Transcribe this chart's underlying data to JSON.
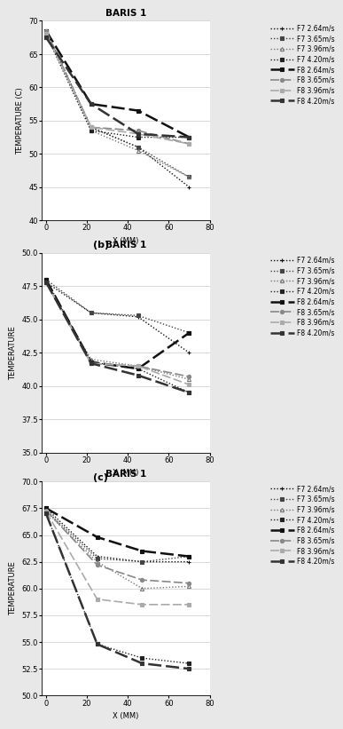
{
  "charts": [
    {
      "title": "BARIS 1",
      "xlabel": "X (MM)",
      "ylabel": "TEMPERATURE (C)",
      "label": "(b)",
      "ylim": [
        40.0,
        70.0
      ],
      "yticks": [
        40.0,
        45.0,
        50.0,
        55.0,
        60.0,
        65.0,
        70.0
      ],
      "xlim": [
        -2,
        80
      ],
      "xticks": [
        0,
        20,
        40,
        60,
        80
      ],
      "series": [
        {
          "label": "F7 2.64m/s",
          "x": [
            0,
            22,
            45,
            70
          ],
          "y": [
            68.5,
            54.0,
            51.0,
            45.0
          ],
          "style": "dotted",
          "marker": "+",
          "color": "#111111"
        },
        {
          "label": "F7 3.65m/s",
          "x": [
            0,
            22,
            45,
            70
          ],
          "y": [
            68.5,
            54.0,
            51.0,
            46.5
          ],
          "style": "dotted",
          "marker": "s",
          "color": "#444444"
        },
        {
          "label": "F7 3.96m/s",
          "x": [
            0,
            22,
            45,
            70
          ],
          "y": [
            68.0,
            53.5,
            50.5,
            46.5
          ],
          "style": "dotted",
          "marker": "^",
          "color": "#777777"
        },
        {
          "label": "F7 4.20m/s",
          "x": [
            0,
            22,
            45,
            70
          ],
          "y": [
            68.0,
            53.5,
            52.5,
            52.5
          ],
          "style": "dotted",
          "marker": "s",
          "color": "#222222"
        },
        {
          "label": "F8 2.64m/s",
          "x": [
            0,
            22,
            45,
            70
          ],
          "y": [
            68.5,
            57.5,
            56.5,
            52.5
          ],
          "style": "dashed_bold",
          "marker": "s",
          "color": "#111111"
        },
        {
          "label": "F8 3.65m/s",
          "x": [
            0,
            22,
            45,
            70
          ],
          "y": [
            68.5,
            54.0,
            53.5,
            51.5
          ],
          "style": "dashed_med",
          "marker": "o",
          "color": "#888888"
        },
        {
          "label": "F8 3.96m/s",
          "x": [
            0,
            22,
            45,
            70
          ],
          "y": [
            68.0,
            54.0,
            53.0,
            51.5
          ],
          "style": "dashed_med",
          "marker": "s",
          "color": "#aaaaaa"
        },
        {
          "label": "F8 4.20m/s",
          "x": [
            0,
            22,
            45,
            70
          ],
          "y": [
            67.5,
            57.5,
            53.0,
            52.5
          ],
          "style": "dashed_bold",
          "marker": "s",
          "color": "#333333"
        }
      ]
    },
    {
      "title": "BARIS 1",
      "xlabel": "X (MM)",
      "ylabel": "TEMPERATURE",
      "label": "(c)",
      "ylim": [
        35.0,
        50.0
      ],
      "yticks": [
        35.0,
        37.5,
        40.0,
        42.5,
        45.0,
        47.5,
        50.0
      ],
      "xlim": [
        -2,
        80
      ],
      "xticks": [
        0,
        20,
        40,
        60,
        80
      ],
      "series": [
        {
          "label": "F7 2.64m/s",
          "x": [
            0,
            22,
            45,
            70
          ],
          "y": [
            47.8,
            45.5,
            45.2,
            42.5
          ],
          "style": "dotted",
          "marker": "+",
          "color": "#111111"
        },
        {
          "label": "F7 3.65m/s",
          "x": [
            0,
            22,
            45,
            70
          ],
          "y": [
            48.0,
            45.5,
            45.3,
            44.0
          ],
          "style": "dotted",
          "marker": "s",
          "color": "#444444"
        },
        {
          "label": "F7 3.96m/s",
          "x": [
            0,
            22,
            45,
            70
          ],
          "y": [
            47.8,
            42.0,
            41.5,
            40.5
          ],
          "style": "dotted",
          "marker": "^",
          "color": "#777777"
        },
        {
          "label": "F7 4.20m/s",
          "x": [
            0,
            22,
            45,
            70
          ],
          "y": [
            48.0,
            41.8,
            41.3,
            39.5
          ],
          "style": "dotted",
          "marker": "s",
          "color": "#222222"
        },
        {
          "label": "F8 2.64m/s",
          "x": [
            0,
            22,
            45,
            70
          ],
          "y": [
            48.0,
            41.8,
            41.3,
            44.0
          ],
          "style": "dashed_bold",
          "marker": "s",
          "color": "#111111"
        },
        {
          "label": "F8 3.65m/s",
          "x": [
            0,
            22,
            45,
            70
          ],
          "y": [
            47.8,
            41.7,
            41.5,
            40.7
          ],
          "style": "dashed_med",
          "marker": "o",
          "color": "#888888"
        },
        {
          "label": "F8 3.96m/s",
          "x": [
            0,
            22,
            45,
            70
          ],
          "y": [
            47.8,
            41.7,
            41.5,
            40.1
          ],
          "style": "dashed_med",
          "marker": "s",
          "color": "#aaaaaa"
        },
        {
          "label": "F8 4.20m/s",
          "x": [
            0,
            22,
            45,
            70
          ],
          "y": [
            47.8,
            41.7,
            40.8,
            39.5
          ],
          "style": "dashed_bold",
          "marker": "s",
          "color": "#333333"
        }
      ]
    },
    {
      "title": "BARIS 1",
      "xlabel": "X (MM)",
      "ylabel": "TEMPERATURE",
      "label": "",
      "ylim": [
        50.0,
        70.0
      ],
      "yticks": [
        50.0,
        52.5,
        55.0,
        57.5,
        60.0,
        62.5,
        65.0,
        67.5,
        70.0
      ],
      "xlim": [
        -2,
        80
      ],
      "xticks": [
        0,
        20,
        40,
        60,
        80
      ],
      "series": [
        {
          "label": "F7 2.64m/s",
          "x": [
            0,
            25,
            47,
            70
          ],
          "y": [
            67.5,
            63.0,
            62.5,
            62.5
          ],
          "style": "dotted",
          "marker": "+",
          "color": "#111111"
        },
        {
          "label": "F7 3.65m/s",
          "x": [
            0,
            25,
            47,
            70
          ],
          "y": [
            67.3,
            62.8,
            62.5,
            63.0
          ],
          "style": "dotted",
          "marker": "s",
          "color": "#444444"
        },
        {
          "label": "F7 3.96m/s",
          "x": [
            0,
            25,
            47,
            70
          ],
          "y": [
            67.2,
            62.5,
            60.0,
            60.2
          ],
          "style": "dotted",
          "marker": "^",
          "color": "#777777"
        },
        {
          "label": "F7 4.20m/s",
          "x": [
            0,
            25,
            47,
            70
          ],
          "y": [
            67.0,
            54.8,
            53.5,
            53.0
          ],
          "style": "dotted",
          "marker": "s",
          "color": "#222222"
        },
        {
          "label": "F8 2.64m/s",
          "x": [
            0,
            25,
            47,
            70
          ],
          "y": [
            67.5,
            64.8,
            63.5,
            63.0
          ],
          "style": "dashed_bold",
          "marker": "s",
          "color": "#111111"
        },
        {
          "label": "F8 3.65m/s",
          "x": [
            0,
            25,
            47,
            70
          ],
          "y": [
            67.3,
            62.2,
            60.8,
            60.5
          ],
          "style": "dashed_med",
          "marker": "o",
          "color": "#888888"
        },
        {
          "label": "F8 3.96m/s",
          "x": [
            0,
            25,
            47,
            70
          ],
          "y": [
            67.2,
            59.0,
            58.5,
            58.5
          ],
          "style": "dashed_med",
          "marker": "s",
          "color": "#aaaaaa"
        },
        {
          "label": "F8 4.20m/s",
          "x": [
            0,
            25,
            47,
            70
          ],
          "y": [
            67.0,
            54.8,
            53.0,
            52.5
          ],
          "style": "dashed_bold",
          "marker": "s",
          "color": "#333333"
        }
      ]
    }
  ],
  "bg_color": "#e8e8e8",
  "plot_bg": "#ffffff",
  "font_size": 6,
  "title_font_size": 7.5,
  "legend_font_size": 5.5,
  "label_font_size": 6
}
